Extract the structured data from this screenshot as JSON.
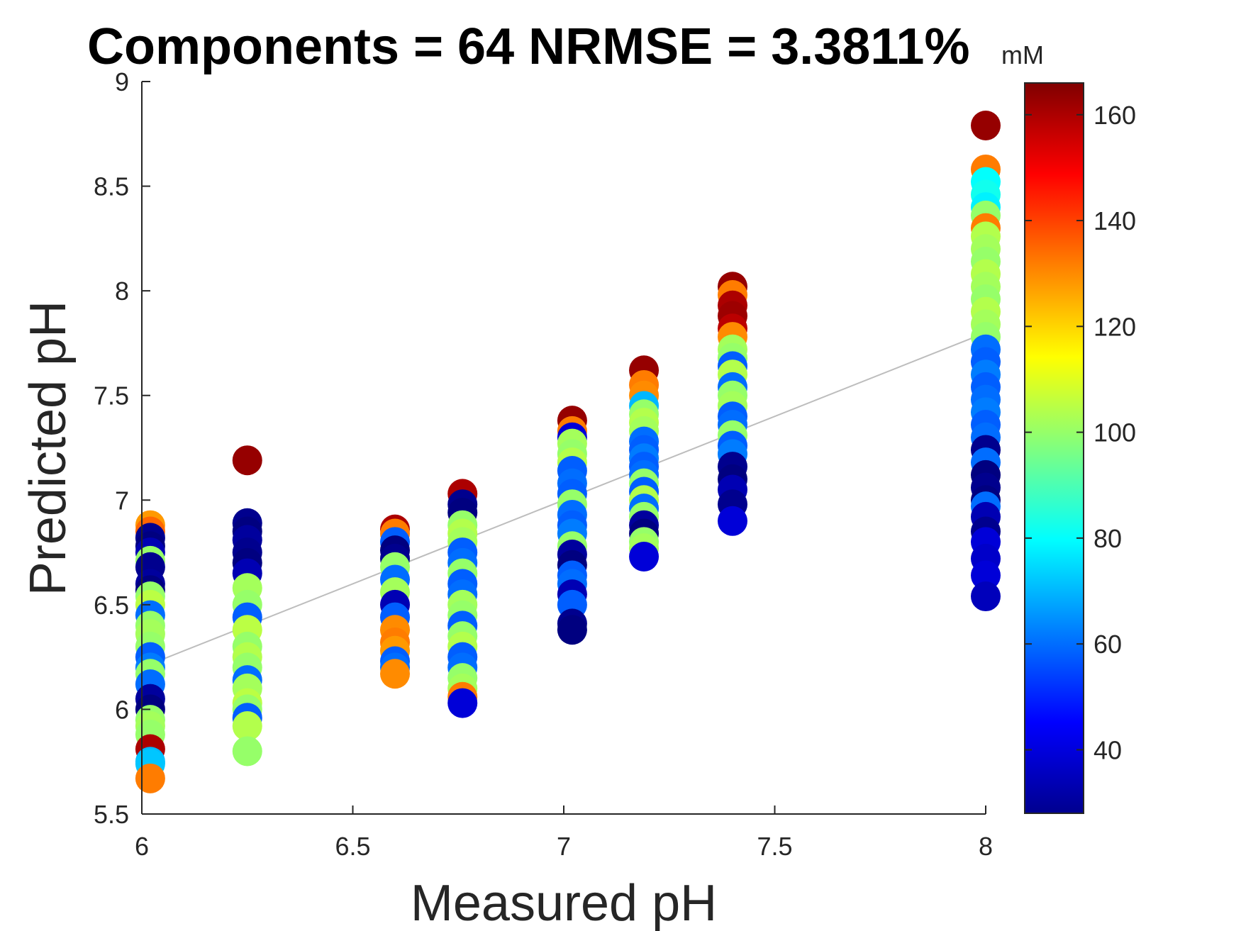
{
  "chart_data": {
    "type": "scatter",
    "title": "Components = 64   NRMSE = 3.3811%",
    "xlabel": "Measured pH",
    "ylabel": "Predicted pH",
    "xlim": [
      6,
      8
    ],
    "ylim": [
      5.5,
      9
    ],
    "xticks": [
      "6",
      "6.5",
      "7",
      "7.5",
      "8"
    ],
    "yticks": [
      "5.5",
      "6",
      "6.5",
      "7",
      "7.5",
      "8",
      "8.5",
      "9"
    ],
    "colorbar": {
      "label": "mM",
      "colormap": "jet",
      "range": [
        28,
        166
      ],
      "ticks": [
        "40",
        "60",
        "80",
        "100",
        "120",
        "140",
        "160"
      ]
    },
    "fit_line": {
      "x": [
        6,
        8
      ],
      "y": [
        6.2,
        7.8
      ],
      "color": "#bdbdbd"
    },
    "series": [
      {
        "x": [
          6.02,
          6.02,
          6.02,
          6.02,
          6.02,
          6.02,
          6.02,
          6.02,
          6.02,
          6.02,
          6.02,
          6.02,
          6.02,
          6.02,
          6.02,
          6.02,
          6.02,
          6.02,
          6.02,
          6.02,
          6.02,
          6.02,
          6.02,
          6.02,
          6.02,
          6.02,
          6.02,
          6.02
        ],
        "y": [
          6.88,
          6.85,
          6.82,
          6.78,
          6.75,
          6.71,
          6.68,
          6.6,
          6.57,
          6.54,
          6.5,
          6.45,
          6.4,
          6.36,
          6.3,
          6.25,
          6.2,
          6.17,
          6.12,
          6.05,
          6.0,
          5.95,
          5.92,
          5.88,
          5.81,
          5.75,
          5.74,
          5.67
        ],
        "c": [
          128,
          135,
          30,
          28,
          35,
          100,
          30,
          32,
          28,
          100,
          105,
          60,
          100,
          102,
          100,
          58,
          62,
          100,
          60,
          32,
          28,
          100,
          102,
          100,
          160,
          70,
          72,
          132
        ]
      },
      {
        "x": [
          6.25,
          6.25,
          6.25,
          6.25,
          6.25,
          6.25,
          6.25,
          6.25,
          6.25,
          6.25,
          6.25,
          6.25,
          6.25,
          6.25,
          6.25,
          6.25,
          6.25,
          6.25,
          6.25,
          6.25,
          6.25
        ],
        "y": [
          7.19,
          6.89,
          6.85,
          6.81,
          6.75,
          6.7,
          6.65,
          6.58,
          6.5,
          6.44,
          6.38,
          6.3,
          6.25,
          6.2,
          6.14,
          6.1,
          6.03,
          6.0,
          5.96,
          5.92,
          5.8
        ],
        "c": [
          163,
          30,
          28,
          32,
          30,
          28,
          35,
          102,
          100,
          58,
          105,
          100,
          104,
          100,
          60,
          102,
          105,
          100,
          58,
          104,
          100
        ]
      },
      {
        "x": [
          6.6,
          6.6,
          6.6,
          6.6,
          6.6,
          6.6,
          6.6,
          6.6,
          6.6,
          6.6,
          6.6,
          6.6,
          6.6,
          6.6,
          6.6,
          6.6
        ],
        "y": [
          6.86,
          6.84,
          6.8,
          6.76,
          6.72,
          6.68,
          6.62,
          6.56,
          6.5,
          6.44,
          6.38,
          6.32,
          6.28,
          6.23,
          6.2,
          6.17
        ],
        "c": [
          160,
          132,
          58,
          28,
          30,
          100,
          60,
          102,
          35,
          58,
          130,
          132,
          128,
          58,
          60,
          130
        ]
      },
      {
        "x": [
          6.76,
          6.76,
          6.76,
          6.76,
          6.76,
          6.76,
          6.76,
          6.76,
          6.76,
          6.76,
          6.76,
          6.76,
          6.76,
          6.76,
          6.76,
          6.76,
          6.76,
          6.76,
          6.76,
          6.76,
          6.76,
          6.76
        ],
        "y": [
          7.03,
          6.98,
          6.94,
          6.88,
          6.84,
          6.8,
          6.75,
          6.7,
          6.65,
          6.6,
          6.55,
          6.5,
          6.45,
          6.4,
          6.35,
          6.3,
          6.25,
          6.2,
          6.15,
          6.1,
          6.06,
          6.03
        ],
        "c": [
          160,
          30,
          28,
          100,
          104,
          102,
          58,
          60,
          100,
          58,
          60,
          102,
          100,
          58,
          100,
          104,
          58,
          60,
          100,
          102,
          132,
          40
        ]
      },
      {
        "x": [
          7.02,
          7.02,
          7.02,
          7.02,
          7.02,
          7.02,
          7.02,
          7.02,
          7.02,
          7.02,
          7.02,
          7.02,
          7.02,
          7.02,
          7.02,
          7.02,
          7.02,
          7.02,
          7.02,
          7.02,
          7.02,
          7.02
        ],
        "y": [
          7.38,
          7.33,
          7.3,
          7.27,
          7.22,
          7.18,
          7.14,
          7.08,
          7.03,
          6.98,
          6.93,
          6.88,
          6.84,
          6.78,
          6.74,
          6.69,
          6.64,
          6.6,
          6.55,
          6.5,
          6.41,
          6.38
        ],
        "c": [
          163,
          132,
          40,
          102,
          100,
          104,
          58,
          60,
          58,
          100,
          60,
          58,
          62,
          100,
          32,
          28,
          58,
          60,
          35,
          58,
          30,
          28
        ]
      },
      {
        "x": [
          7.19,
          7.19,
          7.19,
          7.19,
          7.19,
          7.19,
          7.19,
          7.19,
          7.19,
          7.19,
          7.19,
          7.19,
          7.19,
          7.19,
          7.19,
          7.19,
          7.19,
          7.19,
          7.19,
          7.19,
          7.19,
          7.19
        ],
        "y": [
          7.62,
          7.55,
          7.5,
          7.45,
          7.41,
          7.37,
          7.33,
          7.28,
          7.24,
          7.2,
          7.16,
          7.12,
          7.08,
          7.04,
          7.0,
          6.96,
          6.92,
          6.88,
          6.84,
          6.8,
          6.77,
          6.73
        ],
        "c": [
          163,
          132,
          130,
          70,
          100,
          104,
          102,
          60,
          58,
          62,
          58,
          60,
          100,
          58,
          104,
          60,
          100,
          32,
          28,
          100,
          102,
          40
        ]
      },
      {
        "x": [
          7.4,
          7.4,
          7.4,
          7.4,
          7.4,
          7.4,
          7.4,
          7.4,
          7.4,
          7.4,
          7.4,
          7.4,
          7.4,
          7.4,
          7.4,
          7.4,
          7.4,
          7.4,
          7.4,
          7.4,
          7.4,
          7.4,
          7.4
        ],
        "y": [
          8.02,
          7.98,
          7.93,
          7.88,
          7.82,
          7.78,
          7.72,
          7.68,
          7.64,
          7.6,
          7.54,
          7.5,
          7.45,
          7.4,
          7.36,
          7.31,
          7.26,
          7.22,
          7.16,
          7.1,
          7.05,
          6.98,
          6.9
        ],
        "c": [
          163,
          132,
          160,
          162,
          158,
          130,
          102,
          100,
          58,
          104,
          60,
          100,
          102,
          58,
          60,
          100,
          58,
          62,
          30,
          28,
          35,
          30,
          40
        ]
      },
      {
        "x": [
          8,
          8,
          8,
          8,
          8,
          8,
          8,
          8,
          8,
          8,
          8,
          8,
          8,
          8,
          8,
          8,
          8,
          8,
          8,
          8,
          8,
          8,
          8,
          8,
          8,
          8,
          8,
          8,
          8,
          8,
          8,
          8,
          8,
          8,
          8,
          8
        ],
        "y": [
          8.79,
          8.58,
          8.52,
          8.46,
          8.4,
          8.36,
          8.3,
          8.26,
          8.2,
          8.14,
          8.08,
          8.02,
          7.96,
          7.9,
          7.84,
          7.78,
          7.72,
          7.66,
          7.6,
          7.54,
          7.48,
          7.42,
          7.36,
          7.3,
          7.24,
          7.18,
          7.12,
          7.06,
          7.0,
          6.97,
          6.92,
          6.85,
          6.8,
          6.72,
          6.64,
          6.54
        ],
        "c": [
          163,
          132,
          80,
          82,
          78,
          100,
          132,
          104,
          102,
          100,
          104,
          102,
          100,
          104,
          102,
          100,
          60,
          58,
          62,
          58,
          60,
          62,
          58,
          60,
          30,
          60,
          28,
          30,
          28,
          60,
          35,
          30,
          40,
          38,
          40,
          36
        ]
      }
    ]
  }
}
